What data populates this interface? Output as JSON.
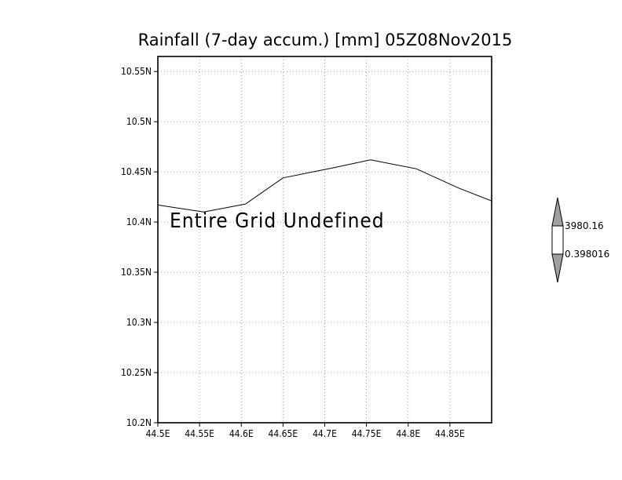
{
  "title": "Rainfall (7-day accum.) [mm] 05Z08Nov2015",
  "overlay_text": "Entire Grid Undefined",
  "x_axis": {
    "ticks": [
      {
        "value": 44.5,
        "label": "44.5E"
      },
      {
        "value": 44.55,
        "label": "44.55E"
      },
      {
        "value": 44.6,
        "label": "44.6E"
      },
      {
        "value": 44.65,
        "label": "44.65E"
      },
      {
        "value": 44.7,
        "label": "44.7E"
      },
      {
        "value": 44.75,
        "label": "44.75E"
      },
      {
        "value": 44.8,
        "label": "44.8E"
      },
      {
        "value": 44.85,
        "label": "44.85E"
      }
    ],
    "range": [
      44.5,
      44.9
    ]
  },
  "y_axis": {
    "ticks": [
      {
        "value": 10.2,
        "label": "10.2N"
      },
      {
        "value": 10.25,
        "label": "10.25N"
      },
      {
        "value": 10.3,
        "label": "10.3N"
      },
      {
        "value": 10.35,
        "label": "10.35N"
      },
      {
        "value": 10.4,
        "label": "10.4N"
      },
      {
        "value": 10.45,
        "label": "10.45N"
      },
      {
        "value": 10.5,
        "label": "10.5N"
      },
      {
        "value": 10.55,
        "label": "10.55N"
      }
    ],
    "range": [
      10.2,
      10.565
    ]
  },
  "coastline": [
    [
      44.5,
      10.417
    ],
    [
      44.555,
      10.41
    ],
    [
      44.605,
      10.418
    ],
    [
      44.65,
      10.444
    ],
    [
      44.71,
      10.454
    ],
    [
      44.755,
      10.462
    ],
    [
      44.81,
      10.453
    ],
    [
      44.86,
      10.434
    ],
    [
      44.9,
      10.421
    ]
  ],
  "colorbar": {
    "labels": [
      "3980.16",
      "0.398016"
    ],
    "colors": {
      "upper": "#a0a0a0",
      "middle": "#ffffff",
      "lower": "#a0a0a0"
    }
  },
  "colors": {
    "grid": "#aaaaaa",
    "line": "#000000"
  }
}
